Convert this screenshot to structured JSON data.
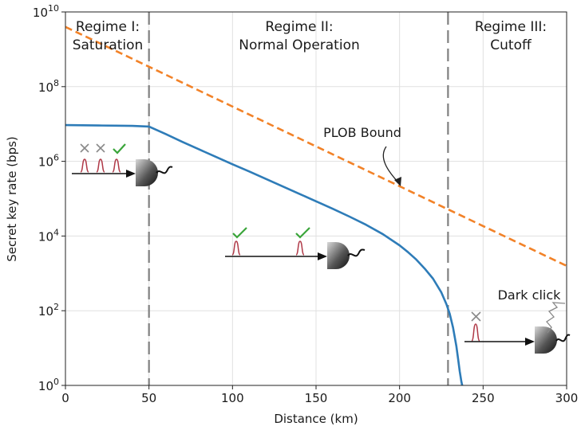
{
  "chart_data": {
    "type": "line",
    "title": "",
    "xlabel": "Distance (km)",
    "ylabel": "Secret key rate (bps)",
    "xlim": [
      0,
      300
    ],
    "ylim_log10": [
      0,
      10
    ],
    "y_scale": "log",
    "x_ticks": [
      0,
      50,
      100,
      150,
      200,
      250,
      300
    ],
    "y_tick_base": "10",
    "y_tick_exponents": [
      "0",
      "2",
      "4",
      "6",
      "8",
      "10"
    ],
    "grid": true,
    "series": [
      {
        "name": "Secret key rate",
        "color": "#2e7cb8",
        "style": "solid",
        "x": [
          0,
          10,
          20,
          30,
          40,
          50,
          60,
          70,
          80,
          90,
          100,
          110,
          120,
          130,
          140,
          150,
          160,
          170,
          180,
          190,
          200,
          205,
          210,
          215,
          220,
          225,
          228,
          230,
          232,
          234,
          235,
          236,
          237,
          237.5
        ],
        "log10_y": [
          6.97,
          6.965,
          6.96,
          6.955,
          6.95,
          6.93,
          6.73,
          6.52,
          6.32,
          6.12,
          5.92,
          5.73,
          5.53,
          5.33,
          5.13,
          4.93,
          4.73,
          4.52,
          4.3,
          4.05,
          3.75,
          3.57,
          3.37,
          3.13,
          2.86,
          2.49,
          2.18,
          1.92,
          1.55,
          1.05,
          0.72,
          0.38,
          0.1,
          0.0
        ]
      },
      {
        "name": "PLOB Bound",
        "color": "#f28228",
        "style": "dashed",
        "x": [
          0,
          300
        ],
        "log10_y": [
          9.6,
          3.2
        ]
      }
    ],
    "regime_boundaries_km": [
      50,
      229
    ],
    "regimes": [
      {
        "line1": "Regime I:",
        "line2": "Saturation"
      },
      {
        "line1": "Regime II:",
        "line2": "Normal Operation"
      },
      {
        "line1": "Regime III:",
        "line2": "Cutoff"
      }
    ],
    "annotations": {
      "plob_label": "PLOB Bound",
      "dark_click_label": "Dark click"
    }
  },
  "colors": {
    "rate_line": "#2e7cb8",
    "plob_line": "#f28228",
    "boundary": "#808080",
    "pulse": "#b03a48",
    "check": "#3aa53a",
    "cross": "#888888"
  }
}
